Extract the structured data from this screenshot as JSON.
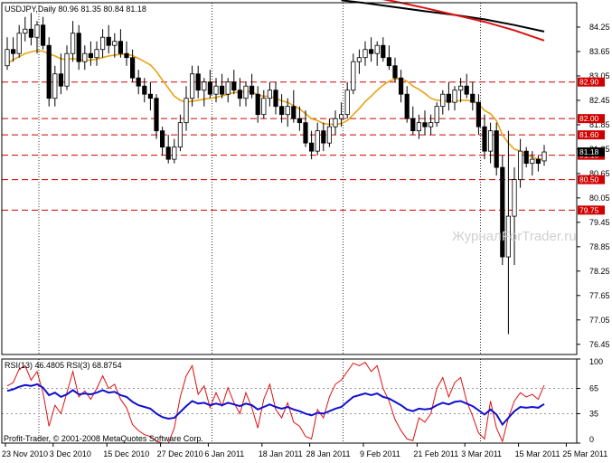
{
  "header": "USDJPY,Daily  80.96 81.35 80.84 81.18",
  "watermark": "ЖурналForTrader.ru",
  "copyright": "Profit-Trader, © 2001-2008 MetaQuotes Software Corp.",
  "colors": {
    "bull_fill": "#ffffff",
    "bear_fill": "#000000",
    "ma_fast": "#e8a317",
    "ma_mid": "#e01010",
    "ma_slow": "#000000",
    "level_line": "#d00000",
    "rsi_fast": "#e01010",
    "rsi_slow": "#1010d0",
    "grid": "#000000"
  },
  "chart_data": [
    {
      "type": "candlestick",
      "symbol": "USDJPY",
      "timeframe": "Daily",
      "ylim": [
        76.2,
        84.85
      ],
      "y_ticks": [
        84.25,
        83.65,
        83.05,
        82.45,
        81.85,
        81.25,
        80.65,
        80.05,
        79.45,
        78.85,
        78.25,
        77.65,
        77.05,
        76.45
      ],
      "x_tick_labels": [
        "23 Nov 2010",
        "3 Dec 2010",
        "15 Dec 2010",
        "27 Dec 2010",
        "6 Jan 2011",
        "18 Jan 2011",
        "28 Jan 2011",
        "9 Feb 2011",
        "21 Feb 2011",
        "3 Mar 2011",
        "15 Mar 2011",
        "25 Mar 2011"
      ],
      "x_tick_bars": [
        0,
        8,
        17,
        26,
        34,
        43,
        51,
        60,
        69,
        77,
        86,
        94
      ],
      "levels": [
        {
          "value": 82.9,
          "label": "82.90"
        },
        {
          "value": 82.0,
          "label": "82.00"
        },
        {
          "value": 81.6,
          "label": "81.60"
        },
        {
          "value": 81.1,
          "label": "81.10"
        },
        {
          "value": 80.5,
          "label": "80.50"
        },
        {
          "value": 79.75,
          "label": "79.75"
        }
      ],
      "last_price": {
        "value": 81.18,
        "label": "81.18"
      },
      "period_separators": [
        0,
        29,
        51,
        74
      ],
      "candles": [
        [
          0,
          83.3,
          84.0,
          83.2,
          83.7
        ],
        [
          1,
          83.7,
          84.0,
          83.4,
          83.6
        ],
        [
          2,
          83.6,
          84.3,
          83.5,
          84.1
        ],
        [
          3,
          84.1,
          84.5,
          83.9,
          84.2
        ],
        [
          4,
          84.2,
          84.6,
          83.8,
          84.0
        ],
        [
          5,
          84.0,
          84.4,
          83.6,
          84.3
        ],
        [
          6,
          84.3,
          84.5,
          83.7,
          83.8
        ],
        [
          7,
          83.8,
          84.0,
          82.3,
          82.5
        ],
        [
          8,
          82.5,
          83.3,
          82.3,
          83.1
        ],
        [
          9,
          83.1,
          83.6,
          82.6,
          82.8
        ],
        [
          10,
          82.8,
          83.8,
          82.7,
          83.6
        ],
        [
          11,
          83.6,
          84.4,
          83.4,
          84.1
        ],
        [
          12,
          84.1,
          84.3,
          83.2,
          83.4
        ],
        [
          13,
          83.4,
          83.8,
          83.2,
          83.6
        ],
        [
          14,
          83.6,
          83.9,
          83.3,
          83.5
        ],
        [
          15,
          83.5,
          83.9,
          83.3,
          83.7
        ],
        [
          16,
          83.7,
          84.2,
          83.5,
          84.0
        ],
        [
          17,
          84.0,
          84.3,
          83.6,
          83.8
        ],
        [
          18,
          83.8,
          84.1,
          83.5,
          83.9
        ],
        [
          19,
          83.9,
          84.2,
          83.5,
          83.6
        ],
        [
          20,
          83.6,
          83.9,
          83.3,
          83.5
        ],
        [
          21,
          83.5,
          83.7,
          82.9,
          83.0
        ],
        [
          22,
          83.0,
          83.2,
          82.6,
          82.8
        ],
        [
          23,
          82.8,
          83.0,
          82.4,
          82.6
        ],
        [
          24,
          82.6,
          82.9,
          82.2,
          82.5
        ],
        [
          25,
          82.5,
          82.6,
          81.5,
          81.7
        ],
        [
          26,
          81.7,
          81.8,
          81.1,
          81.3
        ],
        [
          27,
          81.3,
          81.6,
          80.9,
          81.0
        ],
        [
          28,
          81.0,
          81.5,
          80.9,
          81.3
        ],
        [
          29,
          81.3,
          82.1,
          81.2,
          81.9
        ],
        [
          30,
          81.9,
          82.8,
          81.7,
          82.5
        ],
        [
          31,
          82.5,
          83.3,
          82.3,
          83.1
        ],
        [
          32,
          83.1,
          83.3,
          82.5,
          82.7
        ],
        [
          33,
          82.7,
          83.0,
          82.3,
          82.9
        ],
        [
          34,
          82.9,
          83.2,
          82.5,
          82.6
        ],
        [
          35,
          82.6,
          83.0,
          82.4,
          82.8
        ],
        [
          36,
          82.8,
          83.1,
          82.5,
          82.6
        ],
        [
          37,
          82.6,
          83.0,
          82.4,
          82.9
        ],
        [
          38,
          82.9,
          83.2,
          82.6,
          82.7
        ],
        [
          39,
          82.7,
          83.0,
          82.3,
          82.5
        ],
        [
          40,
          82.5,
          82.9,
          82.3,
          82.8
        ],
        [
          41,
          82.8,
          83.1,
          82.5,
          82.6
        ],
        [
          42,
          82.6,
          82.8,
          81.9,
          82.1
        ],
        [
          43,
          82.1,
          82.7,
          82.0,
          82.5
        ],
        [
          44,
          82.5,
          82.9,
          82.3,
          82.7
        ],
        [
          45,
          82.7,
          82.9,
          82.1,
          82.3
        ],
        [
          46,
          82.3,
          82.6,
          81.9,
          82.1
        ],
        [
          47,
          82.1,
          82.5,
          81.8,
          82.3
        ],
        [
          48,
          82.3,
          82.7,
          81.9,
          82.0
        ],
        [
          49,
          82.0,
          82.3,
          81.7,
          81.9
        ],
        [
          50,
          81.9,
          82.2,
          81.3,
          81.4
        ],
        [
          51,
          81.4,
          81.7,
          81.0,
          81.2
        ],
        [
          52,
          81.2,
          81.9,
          81.1,
          81.7
        ],
        [
          53,
          81.7,
          81.9,
          81.2,
          81.4
        ],
        [
          54,
          81.4,
          82.0,
          81.3,
          81.8
        ],
        [
          55,
          81.8,
          82.2,
          81.6,
          82.0
        ],
        [
          56,
          82.0,
          82.4,
          81.8,
          82.1
        ],
        [
          57,
          82.1,
          82.9,
          82.0,
          82.7
        ],
        [
          58,
          82.7,
          83.6,
          82.6,
          83.4
        ],
        [
          59,
          83.4,
          83.7,
          83.1,
          83.5
        ],
        [
          60,
          83.5,
          83.9,
          83.3,
          83.7
        ],
        [
          61,
          83.7,
          84.0,
          83.4,
          83.6
        ],
        [
          62,
          83.6,
          83.9,
          83.3,
          83.8
        ],
        [
          63,
          83.8,
          84.0,
          83.4,
          83.5
        ],
        [
          64,
          83.5,
          83.8,
          83.2,
          83.3
        ],
        [
          65,
          83.3,
          83.5,
          82.9,
          83.0
        ],
        [
          66,
          83.0,
          83.2,
          82.4,
          82.6
        ],
        [
          67,
          82.6,
          82.8,
          81.9,
          82.0
        ],
        [
          68,
          82.0,
          82.3,
          81.6,
          81.7
        ],
        [
          69,
          81.7,
          82.1,
          81.5,
          81.9
        ],
        [
          70,
          81.9,
          82.2,
          81.6,
          81.8
        ],
        [
          71,
          81.8,
          82.1,
          81.6,
          81.9
        ],
        [
          72,
          81.9,
          82.4,
          81.8,
          82.3
        ],
        [
          73,
          82.3,
          82.7,
          82.1,
          82.6
        ],
        [
          74,
          82.6,
          82.9,
          82.2,
          82.4
        ],
        [
          75,
          82.4,
          82.8,
          82.2,
          82.7
        ],
        [
          76,
          82.7,
          83.0,
          82.4,
          82.8
        ],
        [
          77,
          82.8,
          83.1,
          82.5,
          82.6
        ],
        [
          78,
          82.6,
          82.9,
          82.2,
          82.4
        ],
        [
          79,
          82.4,
          82.6,
          81.6,
          81.8
        ],
        [
          80,
          81.8,
          82.1,
          81.0,
          81.2
        ],
        [
          81,
          81.2,
          81.9,
          80.9,
          81.7
        ],
        [
          82,
          81.7,
          81.9,
          80.6,
          80.8
        ],
        [
          83,
          80.8,
          81.1,
          78.4,
          78.6
        ],
        [
          84,
          78.6,
          81.7,
          76.7,
          79.6
        ],
        [
          85,
          79.6,
          80.8,
          78.4,
          80.5
        ],
        [
          86,
          80.5,
          81.5,
          80.3,
          81.2
        ],
        [
          87,
          81.2,
          81.3,
          80.8,
          80.9
        ],
        [
          88,
          80.9,
          81.2,
          80.6,
          81.0
        ],
        [
          89,
          81.0,
          81.1,
          80.7,
          80.9
        ],
        [
          90,
          80.96,
          81.35,
          80.84,
          81.18
        ]
      ],
      "ma_fast": [
        83.35,
        83.45,
        83.52,
        83.6,
        83.64,
        83.67,
        83.66,
        83.59,
        83.54,
        83.47,
        83.45,
        83.48,
        83.45,
        83.43,
        83.44,
        83.46,
        83.5,
        83.54,
        83.56,
        83.58,
        83.58,
        83.55,
        83.48,
        83.4,
        83.32,
        83.16,
        82.95,
        82.75,
        82.55,
        82.45,
        82.4,
        82.43,
        82.45,
        82.48,
        82.5,
        82.52,
        82.56,
        82.6,
        82.64,
        82.65,
        82.67,
        82.66,
        82.58,
        82.55,
        82.55,
        82.5,
        82.44,
        82.4,
        82.32,
        82.24,
        82.12,
        82.0,
        81.95,
        81.88,
        81.86,
        81.86,
        81.88,
        81.95,
        82.1,
        82.25,
        82.42,
        82.55,
        82.7,
        82.82,
        82.92,
        82.97,
        82.98,
        82.92,
        82.8,
        82.72,
        82.62,
        82.5,
        82.45,
        82.45,
        82.42,
        82.42,
        82.45,
        82.45,
        82.43,
        82.36,
        82.2,
        82.12,
        81.95,
        81.6,
        81.4,
        81.25,
        81.2,
        81.12,
        81.05,
        81.0,
        81.0
      ],
      "ma_mid": [
        [
          57,
          85.08
        ],
        [
          60,
          85.02
        ],
        [
          65,
          84.88
        ],
        [
          70,
          84.72
        ],
        [
          75,
          84.55
        ],
        [
          80,
          84.38
        ],
        [
          85,
          84.17
        ],
        [
          88,
          84.02
        ],
        [
          90,
          83.92
        ]
      ],
      "ma_slow": [
        [
          56,
          84.91
        ],
        [
          60,
          84.84
        ],
        [
          65,
          84.74
        ],
        [
          70,
          84.64
        ],
        [
          75,
          84.55
        ],
        [
          80,
          84.44
        ],
        [
          85,
          84.3
        ],
        [
          90,
          84.14
        ]
      ]
    },
    {
      "type": "line",
      "name": "RSI",
      "label": "RSI(13) 46.4805  RSI(3) 68.8754",
      "ylim": [
        0,
        100
      ],
      "y_ticks": [
        100,
        65,
        35,
        0
      ],
      "levels": [
        65,
        35
      ],
      "series": [
        {
          "name": "RSI(13)",
          "values": [
            62,
            64,
            67,
            69,
            68,
            70,
            66,
            57,
            60,
            55,
            58,
            63,
            58,
            59,
            58,
            60,
            63,
            60,
            61,
            57,
            55,
            49,
            45,
            43,
            41,
            35,
            31,
            29,
            30,
            37,
            44,
            50,
            47,
            48,
            45,
            47,
            45,
            48,
            46,
            44,
            47,
            45,
            40,
            43,
            46,
            43,
            41,
            43,
            40,
            38,
            35,
            33,
            36,
            35,
            38,
            41,
            43,
            49,
            55,
            57,
            59,
            57,
            59,
            55,
            53,
            49,
            45,
            40,
            38,
            41,
            40,
            41,
            45,
            48,
            46,
            49,
            50,
            47,
            44,
            39,
            34,
            40,
            34,
            22,
            30,
            38,
            43,
            42,
            43,
            42,
            46.48
          ]
        },
        {
          "name": "RSI(3)",
          "values": [
            68,
            72,
            88,
            92,
            75,
            85,
            60,
            20,
            45,
            35,
            60,
            85,
            55,
            62,
            52,
            65,
            80,
            65,
            70,
            52,
            42,
            22,
            15,
            10,
            8,
            2,
            0,
            0,
            18,
            55,
            80,
            92,
            58,
            68,
            42,
            60,
            44,
            66,
            48,
            35,
            60,
            42,
            18,
            52,
            70,
            40,
            30,
            48,
            25,
            20,
            8,
            5,
            40,
            30,
            55,
            70,
            75,
            85,
            95,
            92,
            96,
            85,
            92,
            65,
            50,
            28,
            15,
            5,
            3,
            30,
            25,
            35,
            65,
            78,
            55,
            72,
            78,
            50,
            32,
            12,
            5,
            50,
            18,
            2,
            30,
            50,
            60,
            55,
            58,
            52,
            68.88
          ]
        }
      ]
    }
  ]
}
